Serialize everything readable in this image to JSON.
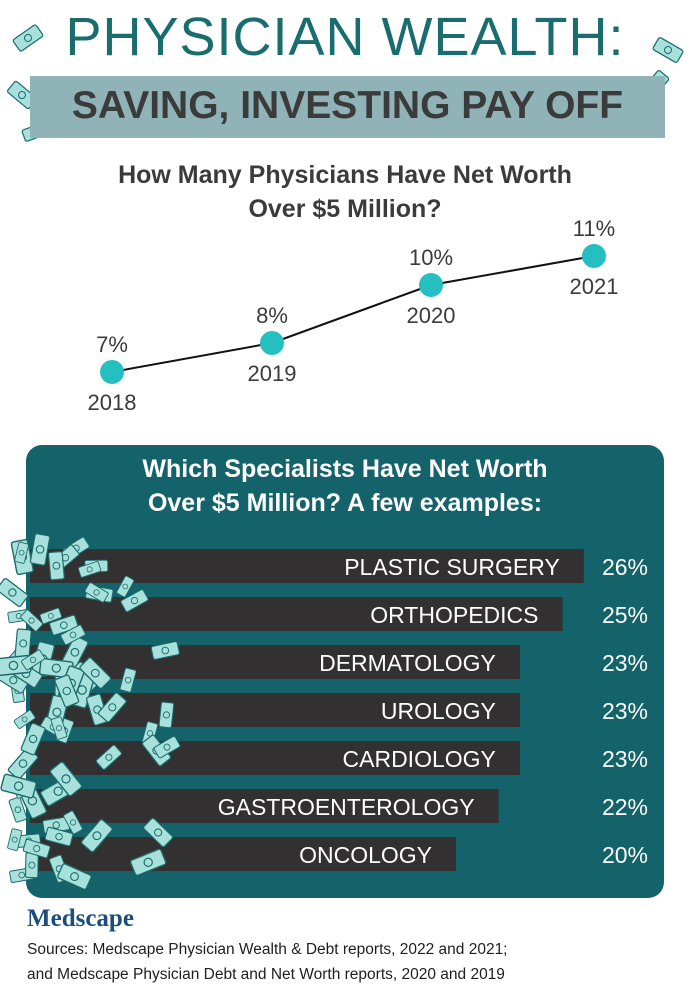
{
  "header": {
    "title": "PHYSICIAN WEALTH:",
    "subtitle": "SAVING, INVESTING PAY OFF"
  },
  "chart_data": [
    {
      "type": "line",
      "title": "How Many Physicians Have Net Worth Over $5 Million?",
      "x": [
        "2018",
        "2019",
        "2020",
        "2021"
      ],
      "values": [
        7,
        8,
        10,
        11
      ],
      "labels": [
        "7%",
        "8%",
        "10%",
        "11%"
      ],
      "color": "#25bfbf"
    },
    {
      "type": "bar",
      "title": "Which Specialists Have Net Worth Over $5 Million? A few examples:",
      "categories": [
        "PLASTIC SURGERY",
        "ORTHOPEDICS",
        "DERMATOLOGY",
        "UROLOGY",
        "CARDIOLOGY",
        "GASTROENTEROLOGY",
        "ONCOLOGY"
      ],
      "values": [
        26,
        25,
        23,
        23,
        23,
        22,
        20
      ],
      "labels": [
        "26%",
        "25%",
        "23%",
        "23%",
        "23%",
        "22%",
        "20%"
      ],
      "bar_color": "#333031",
      "panel_color": "#14626a"
    }
  ],
  "footer": {
    "logo": "Medscape",
    "sources": [
      "Sources: Medscape Physician Wealth & Debt reports, 2022 and 2021;",
      "and Medscape Physician Debt and Net Worth reports, 2020 and 2019"
    ]
  }
}
